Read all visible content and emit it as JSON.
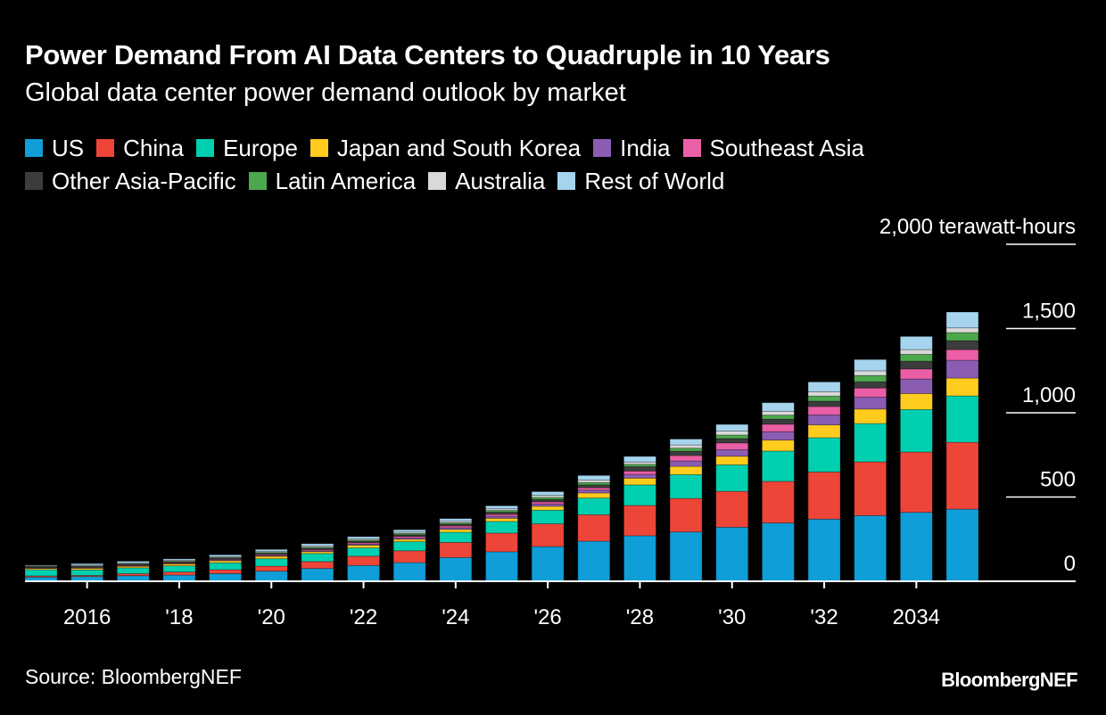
{
  "title": "Power Demand From AI Data Centers to Quadruple in 10 Years",
  "subtitle": "Global data center power demand outlook by market",
  "source": "Source: BloombergNEF",
  "logo": "BloombergNEF",
  "chart_data": {
    "type": "bar",
    "stacked": true,
    "title": "Power Demand From AI Data Centers to Quadruple in 10 Years",
    "subtitle": "Global data center power demand outlook by market",
    "ylabel": "terawatt-hours",
    "ylim": [
      0,
      2000
    ],
    "yticks": [
      0,
      500,
      1000,
      1500,
      2000
    ],
    "ytick_labels": [
      "0",
      "500",
      "1,000",
      "1,500",
      "2,000 terawatt-hours"
    ],
    "x": [
      2015,
      2016,
      2017,
      2018,
      2019,
      2020,
      2021,
      2022,
      2023,
      2024,
      2025,
      2026,
      2027,
      2028,
      2029,
      2030,
      2031,
      2032,
      2033,
      2034,
      2035
    ],
    "xticks": [
      2016,
      2018,
      2020,
      2022,
      2024,
      2026,
      2028,
      2030,
      2032,
      2034
    ],
    "xtick_labels": [
      "2016",
      "'18",
      "'20",
      "'22",
      "'24",
      "'26",
      "'28",
      "'30",
      "'32",
      "2034"
    ],
    "legend_position": "top",
    "grid": true,
    "series": [
      {
        "name": "US",
        "color": "#0f9ed8",
        "values": [
          25,
          28,
          33,
          37,
          46,
          60,
          76,
          94,
          111,
          141,
          175,
          206,
          238,
          270,
          293,
          321,
          346,
          369,
          390,
          409,
          428
        ]
      },
      {
        "name": "China",
        "color": "#ee4539",
        "values": [
          7,
          7,
          12,
          18,
          23,
          30,
          41,
          55,
          70,
          90,
          111,
          135,
          157,
          180,
          199,
          213,
          247,
          280,
          319,
          358,
          397
        ]
      },
      {
        "name": "Europe",
        "color": "#00d0b0",
        "values": [
          37,
          33,
          35,
          37,
          41,
          44,
          48,
          49,
          54,
          60,
          69,
          81,
          99,
          122,
          141,
          157,
          180,
          203,
          227,
          252,
          275
        ]
      },
      {
        "name": "Japan and South Korea",
        "color": "#ffcc1e",
        "values": [
          7,
          9,
          9,
          11,
          12,
          14,
          11,
          16,
          14,
          17,
          19,
          23,
          30,
          40,
          49,
          51,
          65,
          76,
          86,
          95,
          106
        ]
      },
      {
        "name": "India",
        "color": "#8a5db3",
        "values": [
          2,
          2,
          2,
          2,
          3,
          4,
          5,
          6,
          8,
          10,
          12,
          14,
          17,
          23,
          32,
          39,
          50,
          60,
          71,
          86,
          106
        ]
      },
      {
        "name": "Southeast Asia",
        "color": "#ea5fa6",
        "values": [
          3,
          3,
          4,
          4,
          5,
          6,
          7,
          8,
          9,
          10,
          11,
          12,
          14,
          19,
          32,
          40,
          44,
          49,
          54,
          60,
          63
        ]
      },
      {
        "name": "Other Asia-Pacific",
        "color": "#3c3c3c",
        "values": [
          5,
          6,
          6,
          6,
          7,
          8,
          8,
          9,
          10,
          11,
          13,
          15,
          17,
          26,
          26,
          26,
          30,
          32,
          37,
          46,
          53
        ]
      },
      {
        "name": "Latin America",
        "color": "#4ca84d",
        "values": [
          3,
          3,
          3,
          4,
          4,
          5,
          6,
          7,
          8,
          8,
          10,
          12,
          14,
          14,
          18,
          21,
          24,
          30,
          37,
          41,
          48
        ]
      },
      {
        "name": "Australia",
        "color": "#d9d9d9",
        "values": [
          3,
          5,
          5,
          5,
          5,
          6,
          7,
          8,
          8,
          9,
          10,
          12,
          14,
          14,
          19,
          23,
          23,
          26,
          28,
          28,
          28
        ]
      },
      {
        "name": "Rest of World",
        "color": "#a6d4ef",
        "values": [
          4,
          9,
          10,
          9,
          11,
          12,
          14,
          13,
          14,
          16,
          18,
          22,
          28,
          33,
          35,
          40,
          51,
          58,
          67,
          78,
          94
        ]
      }
    ]
  }
}
